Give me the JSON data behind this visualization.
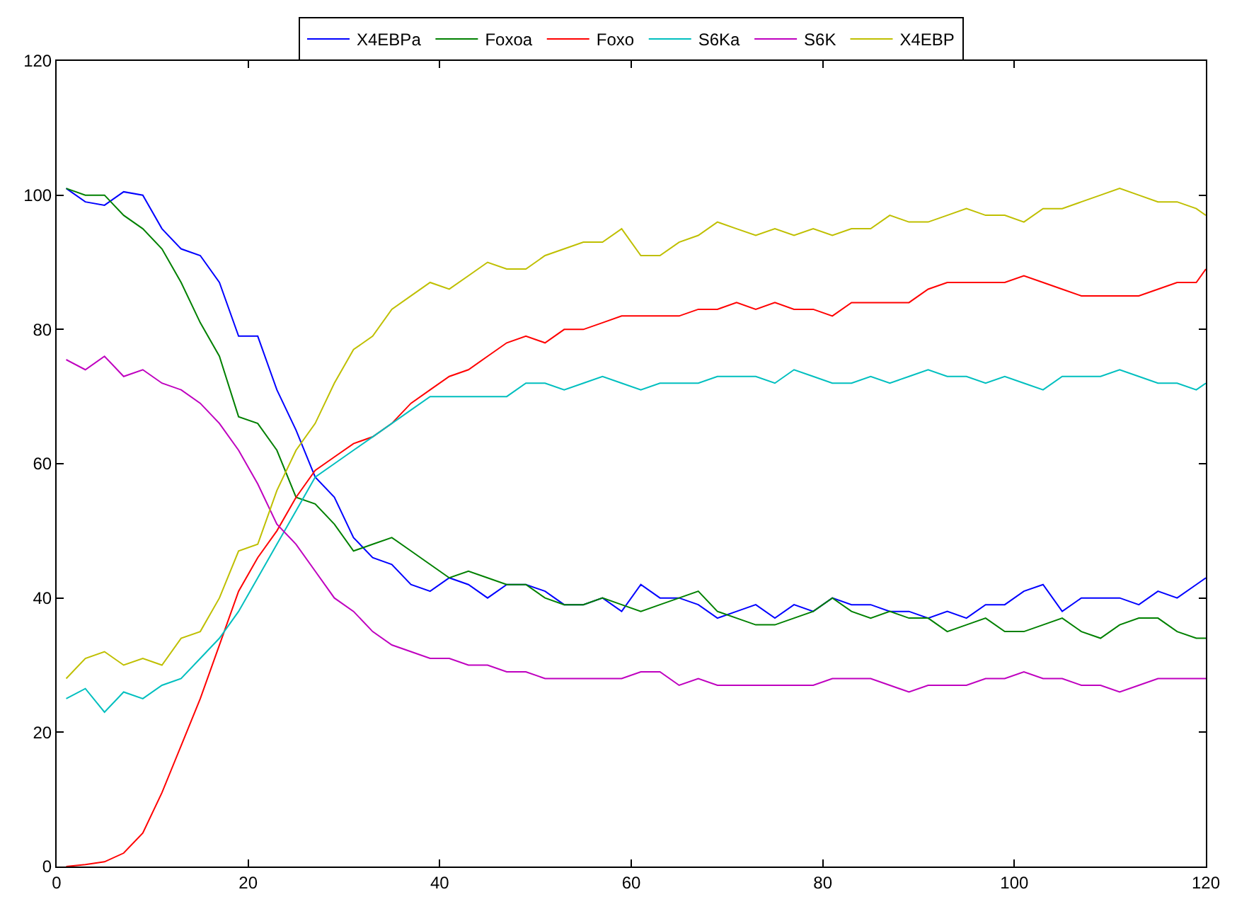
{
  "chart_data": {
    "type": "line",
    "x": [
      1,
      3,
      5,
      7,
      9,
      11,
      13,
      15,
      17,
      19,
      21,
      23,
      25,
      27,
      29,
      31,
      33,
      35,
      37,
      39,
      41,
      43,
      45,
      47,
      49,
      51,
      53,
      55,
      57,
      59,
      61,
      63,
      65,
      67,
      69,
      71,
      73,
      75,
      77,
      79,
      81,
      83,
      85,
      87,
      89,
      91,
      93,
      95,
      97,
      99,
      101,
      103,
      105,
      107,
      109,
      111,
      113,
      115,
      117,
      119,
      120
    ],
    "series": [
      {
        "name": "X4EBPa",
        "color": "#0000ff",
        "values": [
          101,
          99,
          98.5,
          100.5,
          100,
          95,
          92,
          91,
          87,
          79,
          79,
          71,
          65,
          58,
          55,
          49,
          46,
          45,
          42,
          41,
          43,
          42,
          40,
          42,
          42,
          41,
          39,
          39,
          40,
          38,
          42,
          40,
          40,
          39,
          37,
          38,
          39,
          37,
          39,
          38,
          40,
          39,
          39,
          38,
          38,
          37,
          38,
          37,
          39,
          39,
          41,
          42,
          38,
          40,
          40,
          40,
          39,
          41,
          40,
          42,
          43
        ]
      },
      {
        "name": "Foxoa",
        "color": "#008000",
        "values": [
          101,
          100,
          100,
          97,
          95,
          92,
          87,
          81,
          76,
          67,
          66,
          62,
          55,
          54,
          51,
          47,
          48,
          49,
          47,
          45,
          43,
          44,
          43,
          42,
          42,
          40,
          39,
          39,
          40,
          39,
          38,
          39,
          40,
          41,
          38,
          37,
          36,
          36,
          37,
          38,
          40,
          38,
          37,
          38,
          37,
          37,
          35,
          36,
          37,
          35,
          35,
          36,
          37,
          35,
          34,
          36,
          37,
          37,
          35,
          34,
          34
        ]
      },
      {
        "name": "Foxo",
        "color": "#ff0000",
        "values": [
          0,
          0.3,
          0.7,
          2,
          5,
          11,
          18,
          25,
          33,
          41,
          46,
          50,
          55,
          59,
          61,
          63,
          64,
          66,
          69,
          71,
          73,
          74,
          76,
          78,
          79,
          78,
          80,
          80,
          81,
          82,
          82,
          82,
          82,
          83,
          83,
          84,
          83,
          84,
          83,
          83,
          82,
          84,
          84,
          84,
          84,
          86,
          87,
          87,
          87,
          87,
          88,
          87,
          86,
          85,
          85,
          85,
          85,
          86,
          87,
          87,
          89
        ]
      },
      {
        "name": "S6Ka",
        "color": "#00bfbf",
        "values": [
          25,
          26.5,
          23,
          26,
          25,
          27,
          28,
          31,
          34,
          38,
          43,
          48,
          53,
          58,
          60,
          62,
          64,
          66,
          68,
          70,
          70,
          70,
          70,
          70,
          72,
          72,
          71,
          72,
          73,
          72,
          71,
          72,
          72,
          72,
          73,
          73,
          73,
          72,
          74,
          73,
          72,
          72,
          73,
          72,
          73,
          74,
          73,
          73,
          72,
          73,
          72,
          71,
          73,
          73,
          73,
          74,
          73,
          72,
          72,
          71,
          72
        ]
      },
      {
        "name": "S6K",
        "color": "#bf00bf",
        "values": [
          75.5,
          74,
          76,
          73,
          74,
          72,
          71,
          69,
          66,
          62,
          57,
          51,
          48,
          44,
          40,
          38,
          35,
          33,
          32,
          31,
          31,
          30,
          30,
          29,
          29,
          28,
          28,
          28,
          28,
          28,
          29,
          29,
          27,
          28,
          27,
          27,
          27,
          27,
          27,
          27,
          28,
          28,
          28,
          27,
          26,
          27,
          27,
          27,
          28,
          28,
          29,
          28,
          28,
          27,
          27,
          26,
          27,
          28,
          28,
          28,
          28
        ]
      },
      {
        "name": "X4EBP",
        "color": "#bfbf00",
        "values": [
          28,
          31,
          32,
          30,
          31,
          30,
          34,
          35,
          40,
          47,
          48,
          56,
          62,
          66,
          72,
          77,
          79,
          83,
          85,
          87,
          86,
          88,
          90,
          89,
          89,
          91,
          92,
          93,
          93,
          95,
          91,
          91,
          93,
          94,
          96,
          95,
          94,
          95,
          94,
          95,
          94,
          95,
          95,
          97,
          96,
          96,
          97,
          98,
          97,
          97,
          96,
          98,
          98,
          99,
          100,
          101,
          100,
          99,
          99,
          98,
          97
        ]
      }
    ],
    "xlim": [
      0,
      120
    ],
    "xticks": [
      0,
      20,
      40,
      60,
      80,
      100,
      120
    ],
    "ylim": [
      0,
      120
    ],
    "yticks": [
      0,
      20,
      40,
      60,
      80,
      100,
      120
    ],
    "legend": "top",
    "marker": "none",
    "line_style": "solid"
  }
}
